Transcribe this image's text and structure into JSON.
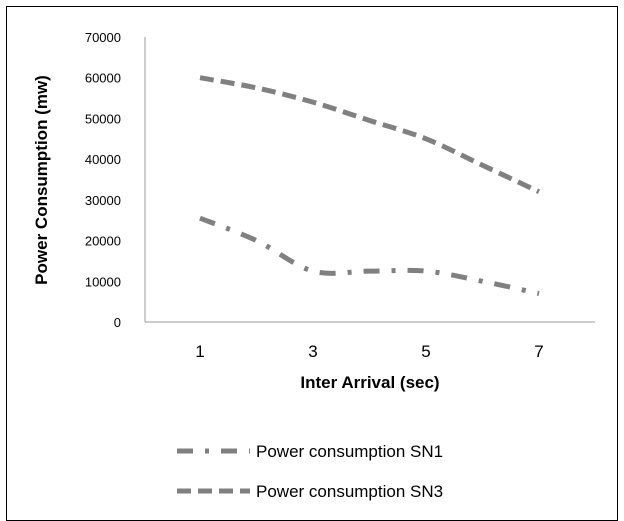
{
  "chart_data": {
    "type": "line",
    "x": [
      1,
      2,
      3,
      4,
      5,
      6,
      7
    ],
    "xticks": [
      "1",
      "3",
      "5",
      "7"
    ],
    "yticks": [
      "0",
      "10000",
      "20000",
      "30000",
      "40000",
      "50000",
      "60000",
      "70000"
    ],
    "ylim": [
      0,
      70000
    ],
    "xlabel": "Inter Arrival (sec)",
    "ylabel": "Power Consumption (mw)",
    "grid": false,
    "legend_position": "bottom",
    "series": [
      {
        "name": "Power consumption SN1",
        "values": [
          25500,
          20000,
          12500,
          12500,
          12500,
          10000,
          7000
        ],
        "dash": "dash-dot",
        "color": "#808080"
      },
      {
        "name": "Power consumption SN3",
        "values": [
          60000,
          57500,
          54000,
          49500,
          45000,
          38500,
          32000
        ],
        "dash": "dash",
        "color": "#808080"
      }
    ]
  }
}
